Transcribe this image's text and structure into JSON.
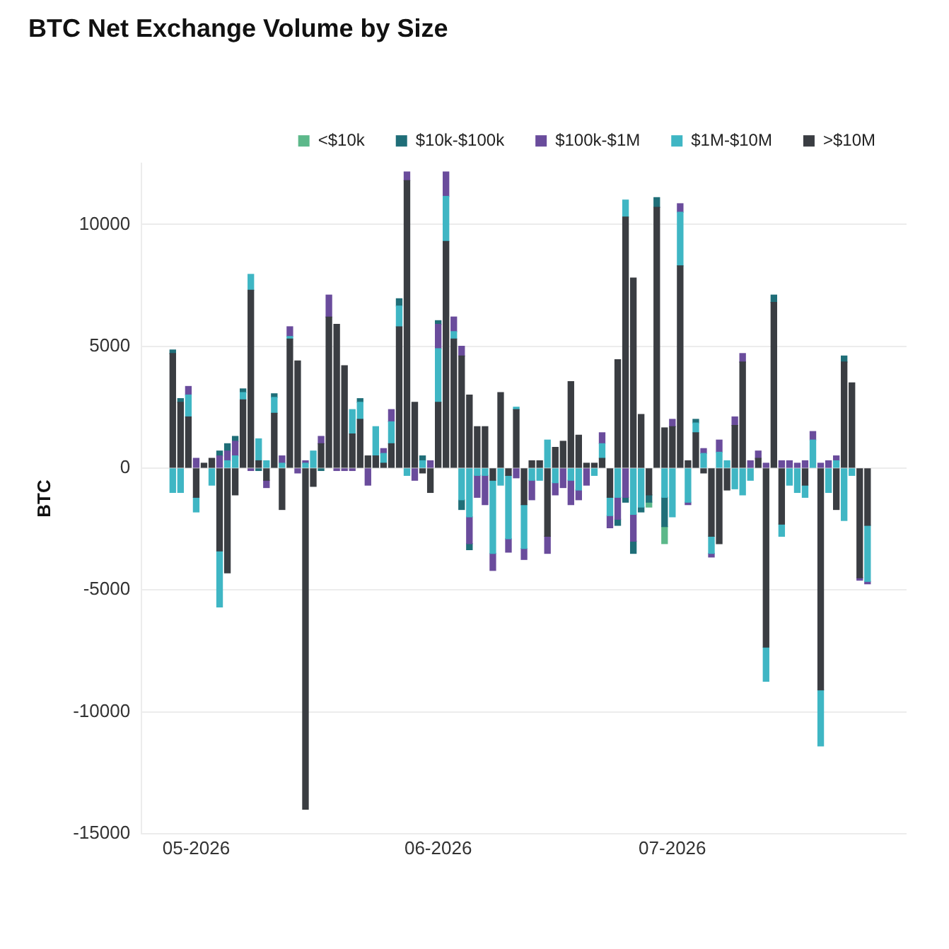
{
  "chart_data": {
    "type": "bar",
    "title": "BTC Net Exchange Volume by Size",
    "ylabel": "BTC",
    "stacked": true,
    "grid": "y",
    "legend": "top",
    "x": [
      "2026-04-28",
      "2026-04-29",
      "2026-04-30",
      "2026-05-01",
      "2026-05-02",
      "2026-05-03",
      "2026-05-04",
      "2026-05-05",
      "2026-05-06",
      "2026-05-07",
      "2026-05-08",
      "2026-05-09",
      "2026-05-10",
      "2026-05-11",
      "2026-05-12",
      "2026-05-13",
      "2026-05-14",
      "2026-05-15",
      "2026-05-16",
      "2026-05-17",
      "2026-05-18",
      "2026-05-19",
      "2026-05-20",
      "2026-05-21",
      "2026-05-22",
      "2026-05-23",
      "2026-05-24",
      "2026-05-25",
      "2026-05-26",
      "2026-05-27",
      "2026-05-28",
      "2026-05-29",
      "2026-05-30",
      "2026-05-31",
      "2026-06-01",
      "2026-06-02",
      "2026-06-03",
      "2026-06-04",
      "2026-06-05",
      "2026-06-06",
      "2026-06-07",
      "2026-06-08",
      "2026-06-09",
      "2026-06-10",
      "2026-06-11",
      "2026-06-12",
      "2026-06-13",
      "2026-06-14",
      "2026-06-15",
      "2026-06-16",
      "2026-06-17",
      "2026-06-18",
      "2026-06-19",
      "2026-06-20",
      "2026-06-21",
      "2026-06-22",
      "2026-06-23",
      "2026-06-24",
      "2026-06-25",
      "2026-06-26",
      "2026-06-27",
      "2026-06-28",
      "2026-06-29",
      "2026-06-30",
      "2026-07-01",
      "2026-07-02",
      "2026-07-03",
      "2026-07-04",
      "2026-07-05",
      "2026-07-06",
      "2026-07-07",
      "2026-07-08",
      "2026-07-09",
      "2026-07-10",
      "2026-07-11",
      "2026-07-12",
      "2026-07-13",
      "2026-07-14",
      "2026-07-15",
      "2026-07-16",
      "2026-07-17",
      "2026-07-18",
      "2026-07-19",
      "2026-07-20",
      "2026-07-21",
      "2026-07-22",
      "2026-07-23",
      "2026-07-24",
      "2026-07-25",
      "2026-07-26"
    ],
    "xlim": [
      "2026-04-24",
      "2026-07-31"
    ],
    "xticks": [
      {
        "value": "2026-05-01",
        "label": "05-2026"
      },
      {
        "value": "2026-06-01",
        "label": "06-2026"
      },
      {
        "value": "2026-07-01",
        "label": "07-2026"
      }
    ],
    "ylim": [
      -15000,
      12500
    ],
    "yticks": [
      -15000,
      -10000,
      -5000,
      0,
      5000,
      10000
    ],
    "series": [
      {
        "name": ">$10M",
        "color": "#3a3d42",
        "values": [
          4700,
          2700,
          2100,
          -1200,
          200,
          400,
          -3400,
          -4300,
          -1100,
          2800,
          7300,
          300,
          -500,
          2250,
          -1700,
          5300,
          4400,
          -14000,
          -750,
          1000,
          6200,
          5900,
          4200,
          1400,
          2000,
          500,
          500,
          200,
          1000,
          5800,
          11800,
          2700,
          -200,
          -1000,
          2700,
          9300,
          5300,
          4600,
          3000,
          1700,
          1700,
          -500,
          3100,
          -300,
          2400,
          -1500,
          300,
          300,
          -2800,
          850,
          1100,
          3550,
          1350,
          200,
          200,
          400,
          -1200,
          4450,
          10300,
          7800,
          2200,
          -1100,
          10700,
          1650,
          1700,
          8300,
          300,
          1450,
          -200,
          -2800,
          -3100,
          -900,
          1750,
          4350,
          0,
          400,
          -7350,
          6800,
          -2300,
          0,
          0,
          -700,
          0,
          -9100,
          0,
          -1700,
          4350,
          3500,
          -4500,
          -2350
        ]
      },
      {
        "name": "$1M-$10M",
        "color": "#3fb6c4",
        "values": [
          -1000,
          -1000,
          900,
          -600,
          0,
          -700,
          -2300,
          300,
          500,
          300,
          650,
          900,
          300,
          650,
          200,
          100,
          0,
          200,
          700,
          0,
          0,
          0,
          0,
          1000,
          700,
          0,
          1200,
          400,
          900,
          850,
          -300,
          0,
          300,
          0,
          2200,
          1850,
          300,
          -1300,
          -2000,
          -300,
          -300,
          -3000,
          -700,
          -2600,
          100,
          -1800,
          -500,
          -500,
          1150,
          -600,
          0,
          -500,
          -900,
          0,
          -300,
          600,
          -750,
          -1200,
          700,
          -1900,
          -1600,
          0,
          0,
          -1200,
          -2000,
          2200,
          -1400,
          400,
          600,
          -700,
          650,
          300,
          -850,
          -1100,
          -500,
          0,
          -1400,
          0,
          -500,
          -700,
          -1000,
          -500,
          1150,
          -2300,
          -1000,
          300,
          -2150,
          -300,
          0,
          -2300
        ]
      },
      {
        "name": "$100k-$1M",
        "color": "#6a4c9c",
        "values": [
          0,
          0,
          350,
          400,
          0,
          0,
          500,
          400,
          600,
          0,
          -100,
          0,
          -300,
          0,
          300,
          400,
          -200,
          100,
          0,
          300,
          900,
          -100,
          -100,
          -100,
          0,
          -700,
          0,
          200,
          500,
          0,
          350,
          -500,
          0,
          300,
          1000,
          1000,
          600,
          400,
          -1100,
          -900,
          -1200,
          -700,
          0,
          -550,
          -400,
          -450,
          -800,
          0,
          -700,
          -500,
          -800,
          -1000,
          -400,
          -700,
          0,
          450,
          -500,
          -900,
          -1200,
          -1100,
          0,
          0,
          0,
          0,
          300,
          350,
          -100,
          0,
          200,
          -150,
          500,
          0,
          350,
          350,
          300,
          300,
          200,
          0,
          300,
          300,
          200,
          300,
          350,
          200,
          300,
          200,
          0,
          0,
          -100,
          -100
        ]
      },
      {
        "name": "$10k-$100k",
        "color": "#1f6e78",
        "values": [
          150,
          150,
          0,
          0,
          0,
          0,
          200,
          300,
          200,
          150,
          0,
          -100,
          0,
          150,
          0,
          0,
          0,
          0,
          0,
          -100,
          0,
          0,
          0,
          0,
          150,
          0,
          0,
          0,
          0,
          300,
          0,
          0,
          200,
          0,
          150,
          0,
          0,
          -400,
          -250,
          0,
          0,
          0,
          0,
          0,
          0,
          0,
          0,
          0,
          0,
          0,
          0,
          0,
          0,
          0,
          0,
          0,
          0,
          -250,
          -200,
          -500,
          -200,
          -300,
          400,
          -1200,
          0,
          0,
          0,
          150,
          0,
          0,
          0,
          0,
          0,
          0,
          0,
          0,
          0,
          300,
          0,
          0,
          0,
          0,
          0,
          0,
          0,
          0,
          250,
          0,
          0,
          0
        ]
      },
      {
        "name": "<$10k",
        "color": "#5cb88a",
        "values": [
          0,
          0,
          0,
          0,
          0,
          0,
          0,
          0,
          0,
          0,
          0,
          0,
          0,
          0,
          0,
          0,
          0,
          0,
          0,
          0,
          0,
          0,
          0,
          0,
          0,
          0,
          0,
          0,
          0,
          0,
          0,
          0,
          0,
          0,
          0,
          0,
          0,
          0,
          0,
          0,
          0,
          0,
          0,
          0,
          0,
          0,
          0,
          0,
          0,
          0,
          0,
          0,
          0,
          0,
          0,
          0,
          0,
          0,
          0,
          0,
          0,
          -200,
          0,
          -700,
          0,
          0,
          0,
          0,
          0,
          0,
          0,
          0,
          0,
          0,
          0,
          0,
          0,
          0,
          0,
          0,
          0,
          0,
          0,
          0,
          0,
          0,
          0,
          0,
          0,
          0
        ]
      }
    ]
  }
}
